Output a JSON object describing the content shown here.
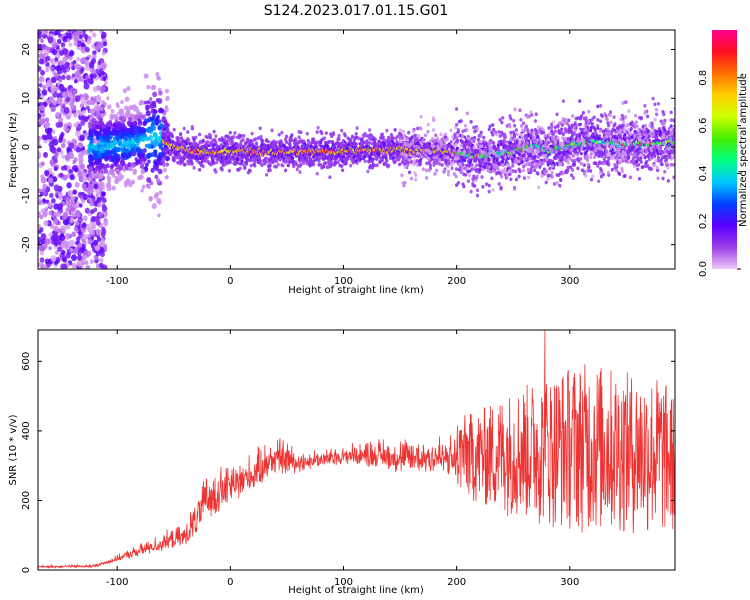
{
  "title": "S124.2023.017.01.15.G01",
  "chart_data": [
    {
      "type": "heatmap",
      "xlabel": "Height of straight line (km)",
      "ylabel": "Frequency (Hz)",
      "xlim": [
        -170,
        393
      ],
      "ylim": [
        -25,
        24
      ],
      "xticks": [
        -100,
        0,
        100,
        200,
        300
      ],
      "yticks": [
        -20,
        -10,
        0,
        10,
        20
      ],
      "grid": false,
      "ridge": {
        "description_points_x": [
          -120,
          -100,
          -80,
          -70,
          -60,
          -50,
          -30,
          0,
          50,
          100,
          150,
          200,
          215,
          230,
          250,
          270,
          280,
          300,
          320,
          350,
          393
        ],
        "frequency_hz": [
          0,
          0.5,
          1,
          2,
          1.5,
          0,
          -1,
          -1,
          -1,
          -0.8,
          -0.5,
          -1,
          -2,
          -1.5,
          -1,
          0.5,
          -1,
          0.5,
          1,
          0.5,
          1
        ]
      },
      "colorbar": {
        "label": "Normalized spectral amplitude",
        "range": [
          0,
          1
        ],
        "ticks": [
          0.0,
          0.2,
          0.4,
          0.6,
          0.8
        ],
        "tick_labels": [
          "0.0",
          "0.2",
          "0.4",
          "0.6",
          "0.8"
        ],
        "colors": [
          "#f0c8f8",
          "#9b3fe8",
          "#5a00ff",
          "#0040ff",
          "#00c8ff",
          "#00ff80",
          "#44ee00",
          "#ccff00",
          "#ffd000",
          "#ff7000",
          "#ff1020",
          "#ff0090"
        ]
      }
    },
    {
      "type": "line",
      "xlabel": "Height of straight line (km)",
      "ylabel": "SNR (10 * v/v)",
      "xlim": [
        -170,
        393
      ],
      "ylim": [
        0,
        690
      ],
      "xticks": [
        -100,
        0,
        100,
        200,
        300
      ],
      "yticks": [
        0,
        200,
        400,
        600
      ],
      "grid": false,
      "series": [
        {
          "color": "#ee3333",
          "envelope_x": [
            -170,
            -120,
            -100,
            -80,
            -60,
            -40,
            -25,
            -20,
            0,
            20,
            40,
            60,
            80,
            100,
            130,
            150,
            180,
            200,
            220,
            250,
            280,
            300,
            320,
            350,
            380,
            393
          ],
          "envelope_low": [
            5,
            5,
            20,
            30,
            40,
            50,
            80,
            100,
            160,
            200,
            240,
            260,
            280,
            290,
            270,
            250,
            240,
            220,
            180,
            150,
            120,
            110,
            100,
            100,
            90,
            100
          ],
          "envelope_high": [
            15,
            20,
            50,
            90,
            130,
            160,
            300,
            350,
            360,
            380,
            450,
            380,
            370,
            380,
            420,
            420,
            450,
            440,
            460,
            520,
            560,
            590,
            600,
            570,
            560,
            500
          ],
          "peak": {
            "x": 278,
            "y": 690
          }
        }
      ]
    }
  ]
}
